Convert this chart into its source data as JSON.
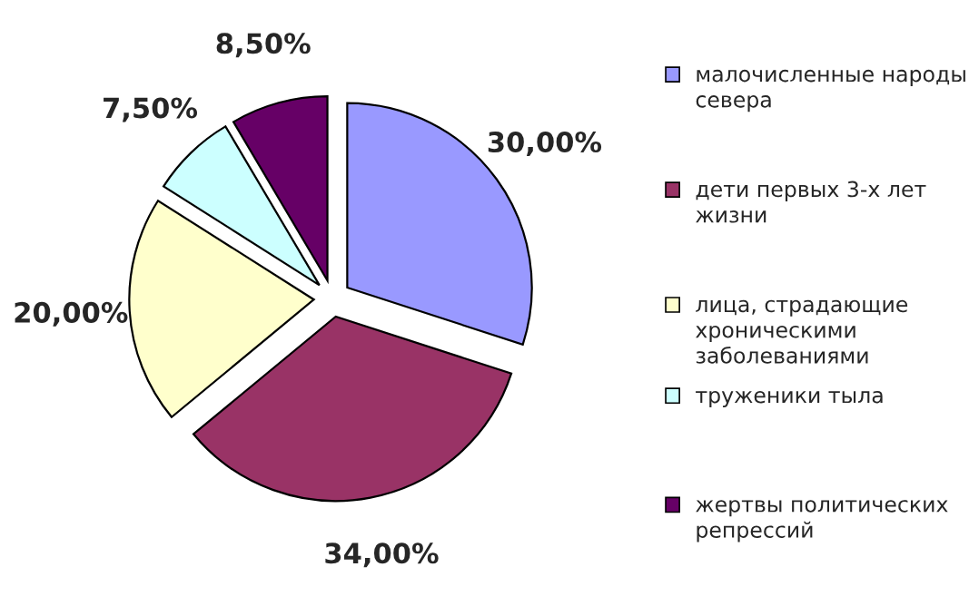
{
  "chart_data": {
    "type": "pie",
    "categories": [
      "малочисленные народы севера",
      "дети первых 3-х лет жизни",
      "лица, страдающие хроническими заболеваниями",
      "труженики тыла",
      "жертвы политических репрессий"
    ],
    "values": [
      30.0,
      34.0,
      20.0,
      7.5,
      8.5
    ],
    "value_labels": [
      "30,00%",
      "34,00%",
      "20,00%",
      "7,50%",
      "8,50%"
    ],
    "colors": [
      "#9999ff",
      "#993366",
      "#ffffcc",
      "#ccffff",
      "#660066"
    ],
    "legend": "right"
  }
}
